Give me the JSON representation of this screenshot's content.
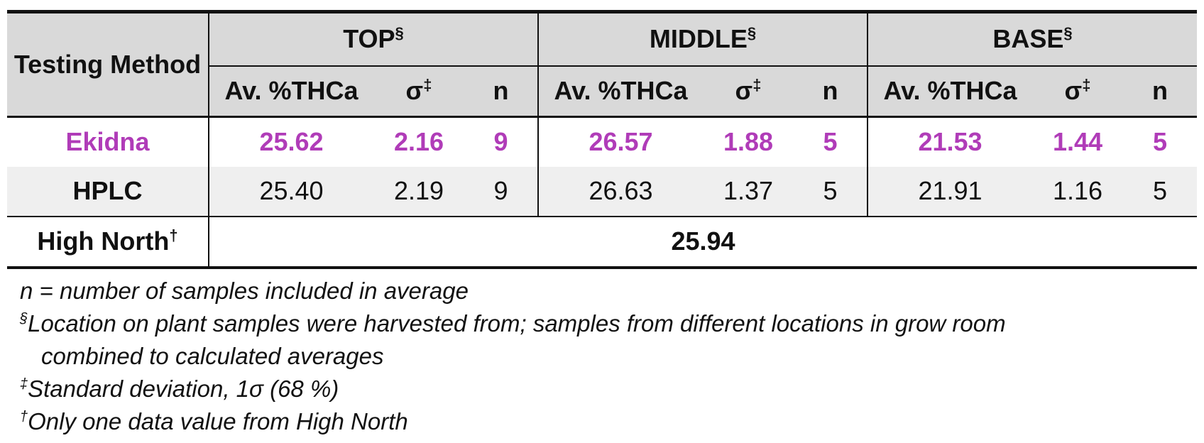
{
  "colors": {
    "ekidna_text": "#b03cb8",
    "header_bg": "#d9d9d9",
    "hplc_row_bg": "#efefef"
  },
  "header": {
    "method": "Testing Method",
    "groups": [
      {
        "label": "TOP",
        "mark": "§"
      },
      {
        "label": "MIDDLE",
        "mark": "§"
      },
      {
        "label": "BASE",
        "mark": "§"
      }
    ],
    "sub": {
      "av": "Av. %THCa",
      "sd": "σ",
      "sd_mark": "‡",
      "n": "n"
    }
  },
  "rows": [
    {
      "label": "Ekidna",
      "top": {
        "av": "25.62",
        "sd": "2.16",
        "n": "9"
      },
      "middle": {
        "av": "26.57",
        "sd": "1.88",
        "n": "5"
      },
      "base": {
        "av": "21.53",
        "sd": "1.44",
        "n": "5"
      }
    },
    {
      "label": "HPLC",
      "top": {
        "av": "25.40",
        "sd": "2.19",
        "n": "9"
      },
      "middle": {
        "av": "26.63",
        "sd": "1.37",
        "n": "5"
      },
      "base": {
        "av": "21.91",
        "sd": "1.16",
        "n": "5"
      }
    }
  ],
  "high_north": {
    "label": "High North",
    "mark": "†",
    "value": "25.94"
  },
  "notes": [
    {
      "mark": "",
      "text": "n = number of samples included in average"
    },
    {
      "mark": "§",
      "text": "Location on plant samples were harvested from; samples from different locations in grow room",
      "cont": "combined to calculated averages"
    },
    {
      "mark": "‡",
      "text": "Standard deviation, 1σ (68 %)"
    },
    {
      "mark": "†",
      "text": "Only one data value from High North"
    }
  ]
}
